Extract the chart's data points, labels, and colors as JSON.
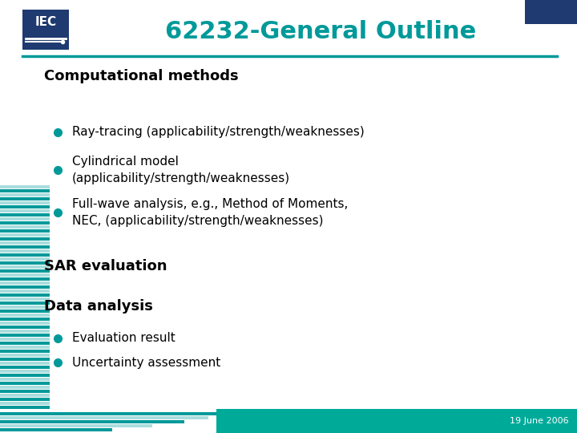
{
  "title": "62232-General Outline",
  "title_color": "#009999",
  "background_color": "#ffffff",
  "header_line_color": "#009999",
  "section1_header": "Computational methods",
  "bullet_color": "#009999",
  "bullets_section1": [
    "Ray-tracing (applicability/strength/weaknesses)",
    "Cylindrical model\n(applicability/strength/weaknesses)",
    "Full-wave analysis, e.g., Method of Moments,\nNEC, (applicability/strength/weaknesses)"
  ],
  "section2_header": "SAR evaluation",
  "section3_header": "Data analysis",
  "bullets_section3": [
    "Evaluation result",
    "Uncertainty assessment"
  ],
  "footer_color": "#00aa99",
  "footer_text": "19 June 2006",
  "footer_text_color": "#ffffff",
  "iec_box_color": "#1e3a70",
  "iec_text_color": "#ffffff",
  "corner_box_color": "#1e3a70",
  "stripe_color_dark": "#009999",
  "stripe_color_light": "#aadddd"
}
